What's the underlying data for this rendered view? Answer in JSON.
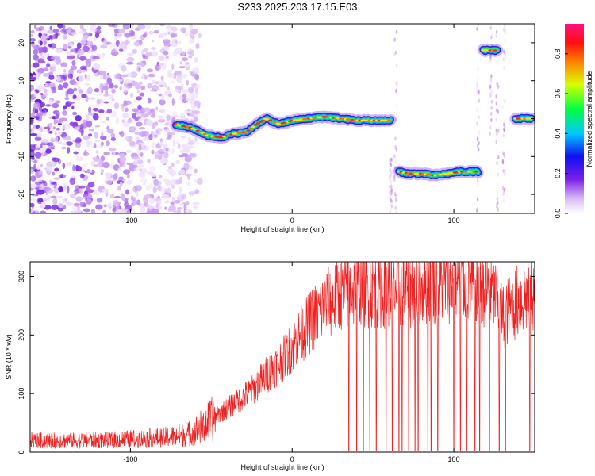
{
  "title": "S233.2025.203.17.15.E03",
  "colors": {
    "snr_line": "#ee2222",
    "frame": "#000000"
  },
  "chart_data": [
    {
      "type": "heatmap",
      "xlabel": "Height of straight line (km)",
      "ylabel": "Frequency (Hz)",
      "xlim": [
        -162,
        150
      ],
      "ylim": [
        -25,
        25
      ],
      "xticks": [
        -100,
        0,
        100
      ],
      "yticks": [
        -20,
        -10,
        0,
        10,
        20
      ],
      "grid": false,
      "colorbar": {
        "label": "Normalized spectral amplitude",
        "range": [
          0,
          0.95
        ],
        "ticks": [
          "0.0",
          "0.2",
          "0.4",
          "0.6",
          "0.8"
        ],
        "tick_values": [
          0.0,
          0.2,
          0.4,
          0.6,
          0.8
        ],
        "colormap": "rainbow (white-purple-blue-cyan-green-yellow-red-pink)"
      },
      "tracks": [
        {
          "x": [
            -72,
            -62,
            -52,
            -44,
            -36,
            -28,
            -22,
            -16,
            -8,
            0,
            10,
            20,
            30,
            40,
            50,
            61
          ],
          "freq": [
            -1.5,
            -2.5,
            -4.5,
            -5.0,
            -4.0,
            -3.5,
            -1.5,
            0,
            -1.5,
            -0.5,
            0,
            0.5,
            0,
            -0.5,
            -0.5,
            -0.5
          ]
        },
        {
          "x": [
            66,
            72,
            80,
            88,
            96,
            104,
            112,
            115
          ],
          "freq": [
            -14,
            -14.5,
            -14.5,
            -15,
            -14.5,
            -14,
            -14,
            -14
          ]
        },
        {
          "x": [
            118,
            127
          ],
          "freq": [
            18,
            18
          ]
        },
        {
          "x": [
            138,
            148
          ],
          "freq": [
            0,
            0
          ]
        }
      ]
    },
    {
      "type": "line",
      "xlabel": "Height of straight line (km)",
      "ylabel": "SNR (10 * v/v)",
      "xlim": [
        -162,
        150
      ],
      "ylim": [
        0,
        325
      ],
      "xticks": [
        -100,
        0,
        100
      ],
      "yticks": [
        0,
        100,
        200,
        300
      ],
      "grid": false,
      "series": [
        {
          "color": "#ee2222",
          "envelope_x": [
            -162,
            -120,
            -80,
            -65,
            -55,
            -45,
            -35,
            -25,
            -15,
            -5,
            5,
            15,
            25,
            35,
            45,
            55,
            65,
            75,
            85,
            95,
            105,
            115,
            125,
            130,
            140,
            150
          ],
          "envelope_y": [
            20,
            20,
            25,
            30,
            45,
            65,
            85,
            105,
            135,
            160,
            200,
            235,
            260,
            275,
            280,
            280,
            280,
            280,
            290,
            290,
            290,
            290,
            270,
            230,
            260,
            270
          ],
          "dropouts_x": [
            35,
            40,
            44,
            48,
            52,
            58,
            62,
            66,
            68,
            72,
            76,
            78,
            84,
            86,
            90,
            100,
            104,
            108,
            113,
            116,
            122,
            128,
            132,
            147
          ]
        }
      ]
    }
  ]
}
